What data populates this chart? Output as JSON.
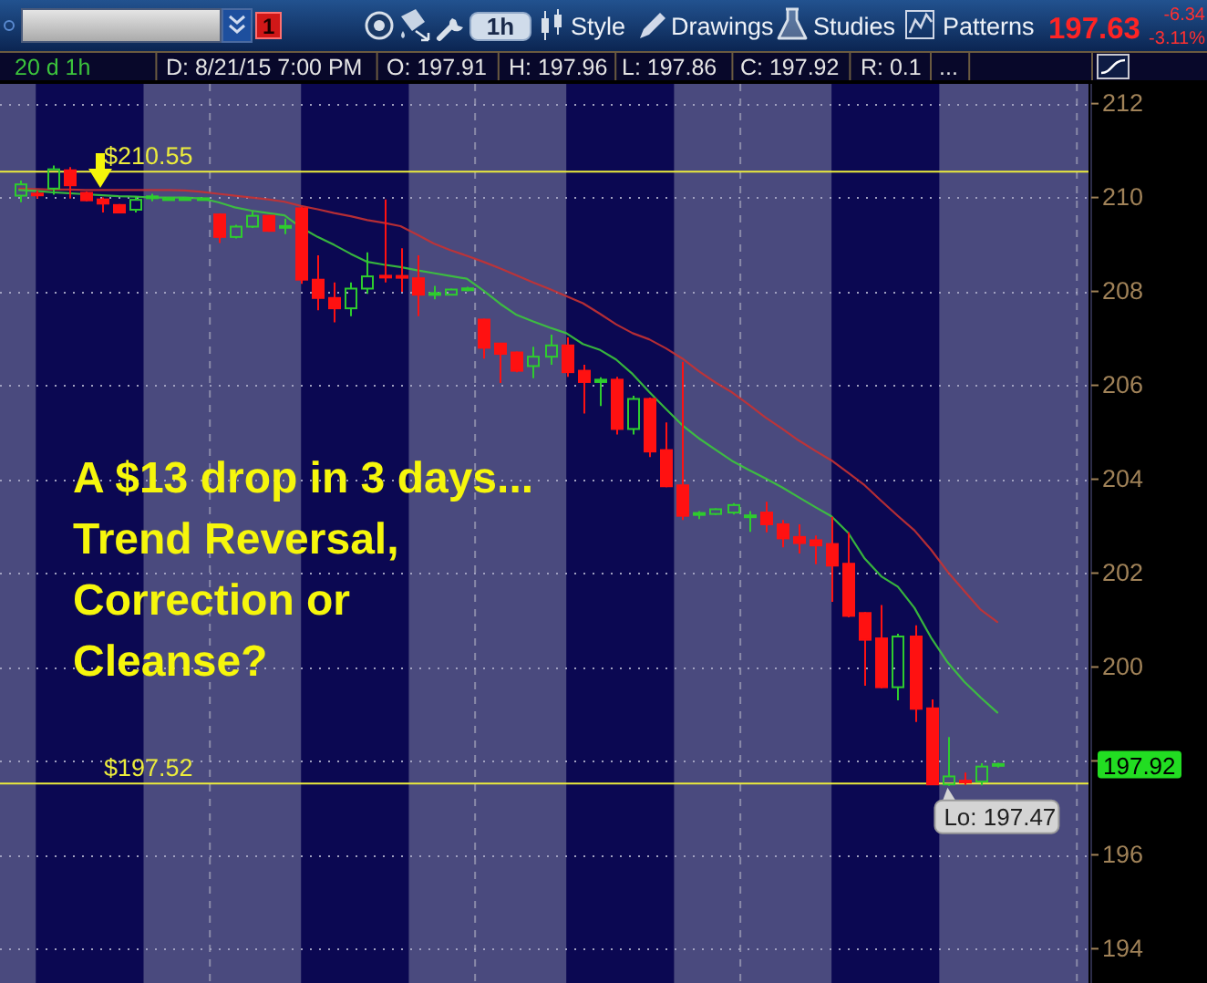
{
  "chart_data": {
    "type": "candlestick",
    "categories": [
      null,
      null,
      null,
      null,
      null,
      null,
      null,
      null,
      null,
      null,
      null,
      null,
      null,
      null,
      null,
      null,
      null,
      null,
      null,
      null,
      null,
      null,
      null,
      null,
      null,
      null,
      null,
      null,
      null,
      null,
      null,
      null,
      null,
      null,
      null,
      null,
      null,
      null,
      null,
      null,
      null,
      null,
      null,
      null,
      null,
      null,
      null,
      null,
      null,
      null,
      null,
      null,
      null,
      null,
      null,
      null,
      null,
      null,
      null,
      null
    ],
    "ohlc": [
      [
        210.04,
        210.36,
        209.9,
        210.28
      ],
      [
        210.08,
        210.15,
        209.98,
        210.05
      ],
      [
        210.19,
        210.68,
        210.06,
        210.6
      ],
      [
        210.58,
        210.65,
        209.98,
        210.26
      ],
      [
        210.1,
        210.13,
        209.92,
        209.94
      ],
      [
        209.96,
        210.0,
        209.68,
        209.87
      ],
      [
        209.84,
        209.86,
        209.66,
        209.68
      ],
      [
        209.74,
        210.03,
        209.68,
        209.95
      ],
      [
        210.0,
        210.08,
        209.92,
        210.01
      ],
      [
        209.96,
        209.98,
        209.95,
        209.97
      ],
      [
        209.96,
        209.98,
        209.95,
        209.97
      ],
      [
        209.96,
        209.98,
        209.95,
        209.97
      ],
      [
        209.64,
        209.66,
        209.03,
        209.16
      ],
      [
        209.16,
        209.42,
        209.13,
        209.38
      ],
      [
        209.38,
        209.71,
        209.35,
        209.61
      ],
      [
        209.61,
        209.63,
        209.27,
        209.29
      ],
      [
        209.36,
        209.55,
        209.22,
        209.39
      ],
      [
        209.77,
        209.8,
        208.16,
        208.25
      ],
      [
        208.25,
        208.77,
        207.6,
        207.86
      ],
      [
        207.86,
        208.19,
        207.34,
        207.64
      ],
      [
        207.64,
        208.19,
        207.47,
        208.06
      ],
      [
        208.06,
        208.83,
        207.95,
        208.32
      ],
      [
        208.33,
        209.96,
        208.19,
        208.3
      ],
      [
        208.33,
        208.92,
        207.99,
        208.29
      ],
      [
        208.28,
        208.77,
        207.47,
        207.93
      ],
      [
        207.93,
        208.12,
        207.83,
        207.96
      ],
      [
        207.93,
        208.06,
        207.92,
        208.04
      ],
      [
        208.03,
        208.1,
        208.0,
        208.06
      ],
      [
        207.4,
        207.42,
        206.57,
        206.8
      ],
      [
        206.89,
        206.9,
        206.05,
        206.67
      ],
      [
        206.7,
        206.72,
        206.28,
        206.31
      ],
      [
        206.41,
        206.82,
        206.15,
        206.61
      ],
      [
        206.61,
        207.08,
        206.44,
        206.85
      ],
      [
        206.85,
        207.02,
        206.18,
        206.28
      ],
      [
        206.31,
        206.44,
        205.4,
        206.07
      ],
      [
        206.07,
        206.17,
        205.56,
        206.12
      ],
      [
        206.12,
        206.18,
        204.95,
        205.07
      ],
      [
        205.07,
        205.78,
        204.95,
        205.71
      ],
      [
        205.71,
        205.74,
        204.47,
        204.59
      ],
      [
        204.62,
        205.21,
        203.83,
        203.85
      ],
      [
        203.87,
        206.5,
        203.13,
        203.22
      ],
      [
        203.24,
        203.32,
        203.15,
        203.28
      ],
      [
        203.26,
        203.38,
        203.24,
        203.36
      ],
      [
        203.29,
        203.49,
        203.25,
        203.45
      ],
      [
        203.2,
        203.32,
        202.88,
        203.22
      ],
      [
        203.29,
        203.52,
        202.87,
        203.04
      ],
      [
        203.04,
        203.13,
        202.55,
        202.74
      ],
      [
        202.77,
        203.04,
        202.42,
        202.64
      ],
      [
        202.7,
        202.8,
        202.19,
        202.59
      ],
      [
        202.62,
        203.2,
        201.39,
        202.16
      ],
      [
        202.2,
        202.87,
        201.06,
        201.09
      ],
      [
        201.15,
        201.17,
        199.6,
        200.58
      ],
      [
        200.61,
        201.32,
        199.55,
        199.57
      ],
      [
        199.57,
        200.71,
        199.29,
        200.65
      ],
      [
        200.65,
        200.89,
        198.83,
        199.11
      ],
      [
        199.12,
        199.31,
        197.49,
        197.5
      ],
      [
        197.5,
        198.51,
        197.47,
        197.67
      ],
      [
        197.57,
        197.75,
        197.49,
        197.55
      ],
      [
        197.56,
        197.95,
        197.48,
        197.88
      ],
      [
        197.91,
        197.96,
        197.86,
        197.92
      ]
    ],
    "colors": [
      "#2ecc2e",
      "#ff1111",
      "#2ecc2e",
      "#ff1111",
      "#ff1111",
      "#ff1111",
      "#ff1111",
      "#2ecc2e",
      "#2ecc2e",
      "#2ecc2e",
      "#2ecc2e",
      "#2ecc2e",
      "#ff1111",
      "#2ecc2e",
      "#2ecc2e",
      "#ff1111",
      "#2ecc2e",
      "#ff1111",
      "#ff1111",
      "#ff1111",
      "#2ecc2e",
      "#2ecc2e",
      "#ff1111",
      "#ff1111",
      "#ff1111",
      "#2ecc2e",
      "#2ecc2e",
      "#2ecc2e",
      "#ff1111",
      "#ff1111",
      "#ff1111",
      "#2ecc2e",
      "#2ecc2e",
      "#ff1111",
      "#ff1111",
      "#2ecc2e",
      "#ff1111",
      "#2ecc2e",
      "#ff1111",
      "#ff1111",
      "#ff1111",
      "#2ecc2e",
      "#2ecc2e",
      "#2ecc2e",
      "#2ecc2e",
      "#ff1111",
      "#ff1111",
      "#ff1111",
      "#ff1111",
      "#ff1111",
      "#ff1111",
      "#ff1111",
      "#ff1111",
      "#2ecc2e",
      "#ff1111",
      "#ff1111",
      "#2ecc2e",
      "#ff1111",
      "#2ecc2e",
      "#2ecc2e"
    ],
    "series": [
      {
        "type": "line",
        "color": "#c83232",
        "values": [
          210.19,
          210.18,
          210.17,
          210.17,
          210.16,
          210.16,
          210.16,
          210.16,
          210.16,
          210.16,
          210.15,
          210.12,
          210.08,
          210.04,
          210.0,
          209.96,
          209.91,
          209.82,
          209.75,
          209.67,
          209.6,
          209.52,
          209.46,
          209.39,
          209.21,
          209.02,
          208.88,
          208.76,
          208.63,
          208.49,
          208.34,
          208.19,
          208.05,
          207.9,
          207.75,
          207.53,
          207.3,
          207.11,
          206.98,
          206.79,
          206.57,
          206.3,
          206.06,
          205.85,
          205.59,
          205.32,
          205.08,
          204.83,
          204.61,
          204.4,
          204.14,
          203.87,
          203.54,
          203.22,
          202.91,
          202.5,
          202.03,
          201.62,
          201.22,
          200.96
        ]
      },
      {
        "type": "line",
        "color": "#3cc83c",
        "values": [
          210.16,
          210.14,
          210.11,
          210.09,
          210.07,
          210.05,
          210.03,
          210.02,
          210.0,
          210.0,
          210.0,
          209.98,
          209.9,
          209.79,
          209.72,
          209.67,
          209.62,
          209.36,
          209.16,
          208.99,
          208.8,
          208.63,
          208.57,
          208.52,
          208.45,
          208.39,
          208.33,
          208.27,
          208.02,
          207.74,
          207.5,
          207.36,
          207.23,
          207.11,
          206.88,
          206.76,
          206.55,
          206.24,
          205.86,
          205.5,
          205.15,
          204.87,
          204.63,
          204.39,
          204.2,
          204.02,
          203.83,
          203.62,
          203.41,
          203.21,
          202.86,
          202.31,
          201.93,
          201.71,
          201.26,
          200.63,
          200.1,
          199.69,
          199.35,
          199.03
        ]
      }
    ],
    "ylim": [
      193.27,
      212.42
    ],
    "yticks": [
      194,
      196,
      {
        "value": 198,
        "label": null
      },
      200,
      202,
      204,
      206,
      208,
      210,
      212
    ],
    "grid": "y",
    "tick_labels": "y",
    "ref_lines": [
      {
        "axis": "y",
        "value": 210.55,
        "label": "$210.55",
        "color": "#ecec3c"
      },
      {
        "axis": "y",
        "value": 197.52,
        "label": "$197.52",
        "color": "#ecec3c"
      }
    ],
    "annotations": [
      "A $13 drop in 3 days...\nTrend Reversal,\nCorrection or\nCleanse?",
      {
        "text": "Lo: 197.47",
        "y": 197.47
      },
      "197.92",
      "20 d 1h",
      "D: 8/21/15 7:00 PM",
      "O: 197.91",
      "H: 197.96",
      "L: 197.86",
      "C: 197.92",
      "R: 0.1",
      "...",
      "1",
      "1h",
      "Style",
      "Drawings",
      "Studies",
      "Patterns",
      "197.63",
      "-6.34",
      "-3.11%"
    ]
  }
}
